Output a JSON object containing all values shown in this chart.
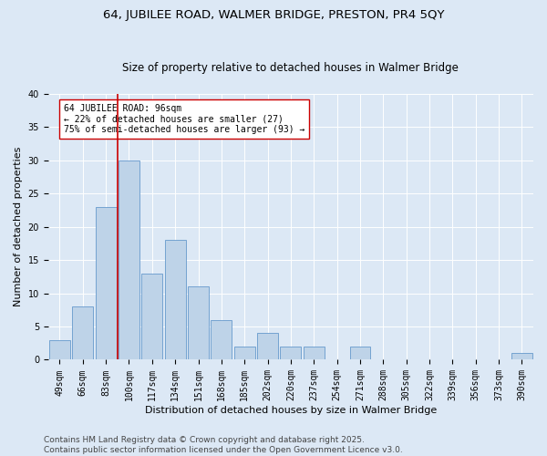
{
  "title": "64, JUBILEE ROAD, WALMER BRIDGE, PRESTON, PR4 5QY",
  "subtitle": "Size of property relative to detached houses in Walmer Bridge",
  "xlabel": "Distribution of detached houses by size in Walmer Bridge",
  "ylabel": "Number of detached properties",
  "categories": [
    "49sqm",
    "66sqm",
    "83sqm",
    "100sqm",
    "117sqm",
    "134sqm",
    "151sqm",
    "168sqm",
    "185sqm",
    "202sqm",
    "220sqm",
    "237sqm",
    "254sqm",
    "271sqm",
    "288sqm",
    "305sqm",
    "322sqm",
    "339sqm",
    "356sqm",
    "373sqm",
    "390sqm"
  ],
  "values": [
    3,
    8,
    23,
    30,
    13,
    18,
    11,
    6,
    2,
    4,
    2,
    2,
    0,
    2,
    0,
    0,
    0,
    0,
    0,
    0,
    1
  ],
  "bar_color": "#bed3e8",
  "bar_edge_color": "#6699cc",
  "bg_color": "#dce8f5",
  "grid_color": "#ffffff",
  "vline_color": "#cc0000",
  "vline_index": 2.5,
  "annotation_text": "64 JUBILEE ROAD: 96sqm\n← 22% of detached houses are smaller (27)\n75% of semi-detached houses are larger (93) →",
  "annotation_box_facecolor": "#ffffff",
  "annotation_box_edgecolor": "#cc0000",
  "ylim": [
    0,
    40
  ],
  "yticks": [
    0,
    5,
    10,
    15,
    20,
    25,
    30,
    35,
    40
  ],
  "title_fontsize": 9.5,
  "subtitle_fontsize": 8.5,
  "axis_label_fontsize": 8,
  "tick_fontsize": 7,
  "annotation_fontsize": 7,
  "footer_fontsize": 6.5,
  "footer_line1": "Contains HM Land Registry data © Crown copyright and database right 2025.",
  "footer_line2": "Contains public sector information licensed under the Open Government Licence v3.0."
}
